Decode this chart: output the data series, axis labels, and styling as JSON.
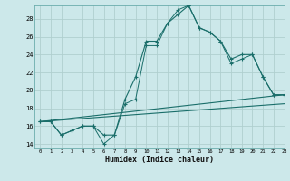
{
  "xlabel": "Humidex (Indice chaleur)",
  "bg_color": "#cce8ea",
  "grid_color": "#b0cfcf",
  "line_color": "#1a6e6a",
  "xlim": [
    -0.5,
    23
  ],
  "ylim": [
    13.5,
    29.5
  ],
  "xticks": [
    0,
    1,
    2,
    3,
    4,
    5,
    6,
    7,
    8,
    9,
    10,
    11,
    12,
    13,
    14,
    15,
    16,
    17,
    18,
    19,
    20,
    21,
    22,
    23
  ],
  "yticks": [
    14,
    16,
    18,
    20,
    22,
    24,
    26,
    28
  ],
  "series1_x": [
    0,
    1,
    2,
    3,
    4,
    5,
    6,
    7,
    8,
    9,
    10,
    11,
    12,
    13,
    14,
    15,
    16,
    17,
    18,
    19,
    20,
    21,
    22,
    23
  ],
  "series1_y": [
    16.5,
    16.5,
    15.0,
    15.5,
    16.0,
    16.0,
    15.0,
    15.0,
    19.0,
    21.5,
    25.5,
    25.5,
    27.5,
    28.5,
    29.5,
    27.0,
    26.5,
    25.5,
    23.5,
    24.0,
    24.0,
    21.5,
    19.5,
    19.5
  ],
  "series2_x": [
    0,
    1,
    2,
    3,
    4,
    5,
    6,
    7,
    8,
    9,
    10,
    11,
    12,
    13,
    14,
    15,
    16,
    17,
    18,
    19,
    20,
    21,
    22,
    23
  ],
  "series2_y": [
    16.5,
    16.5,
    15.0,
    15.5,
    16.0,
    16.0,
    14.0,
    15.0,
    18.5,
    19.0,
    25.0,
    25.0,
    27.5,
    29.0,
    29.5,
    27.0,
    26.5,
    25.5,
    23.0,
    23.5,
    24.0,
    21.5,
    19.5,
    19.5
  ],
  "line3_x": [
    0,
    23
  ],
  "line3_y": [
    16.5,
    18.5
  ],
  "line4_x": [
    0,
    23
  ],
  "line4_y": [
    16.5,
    19.5
  ]
}
